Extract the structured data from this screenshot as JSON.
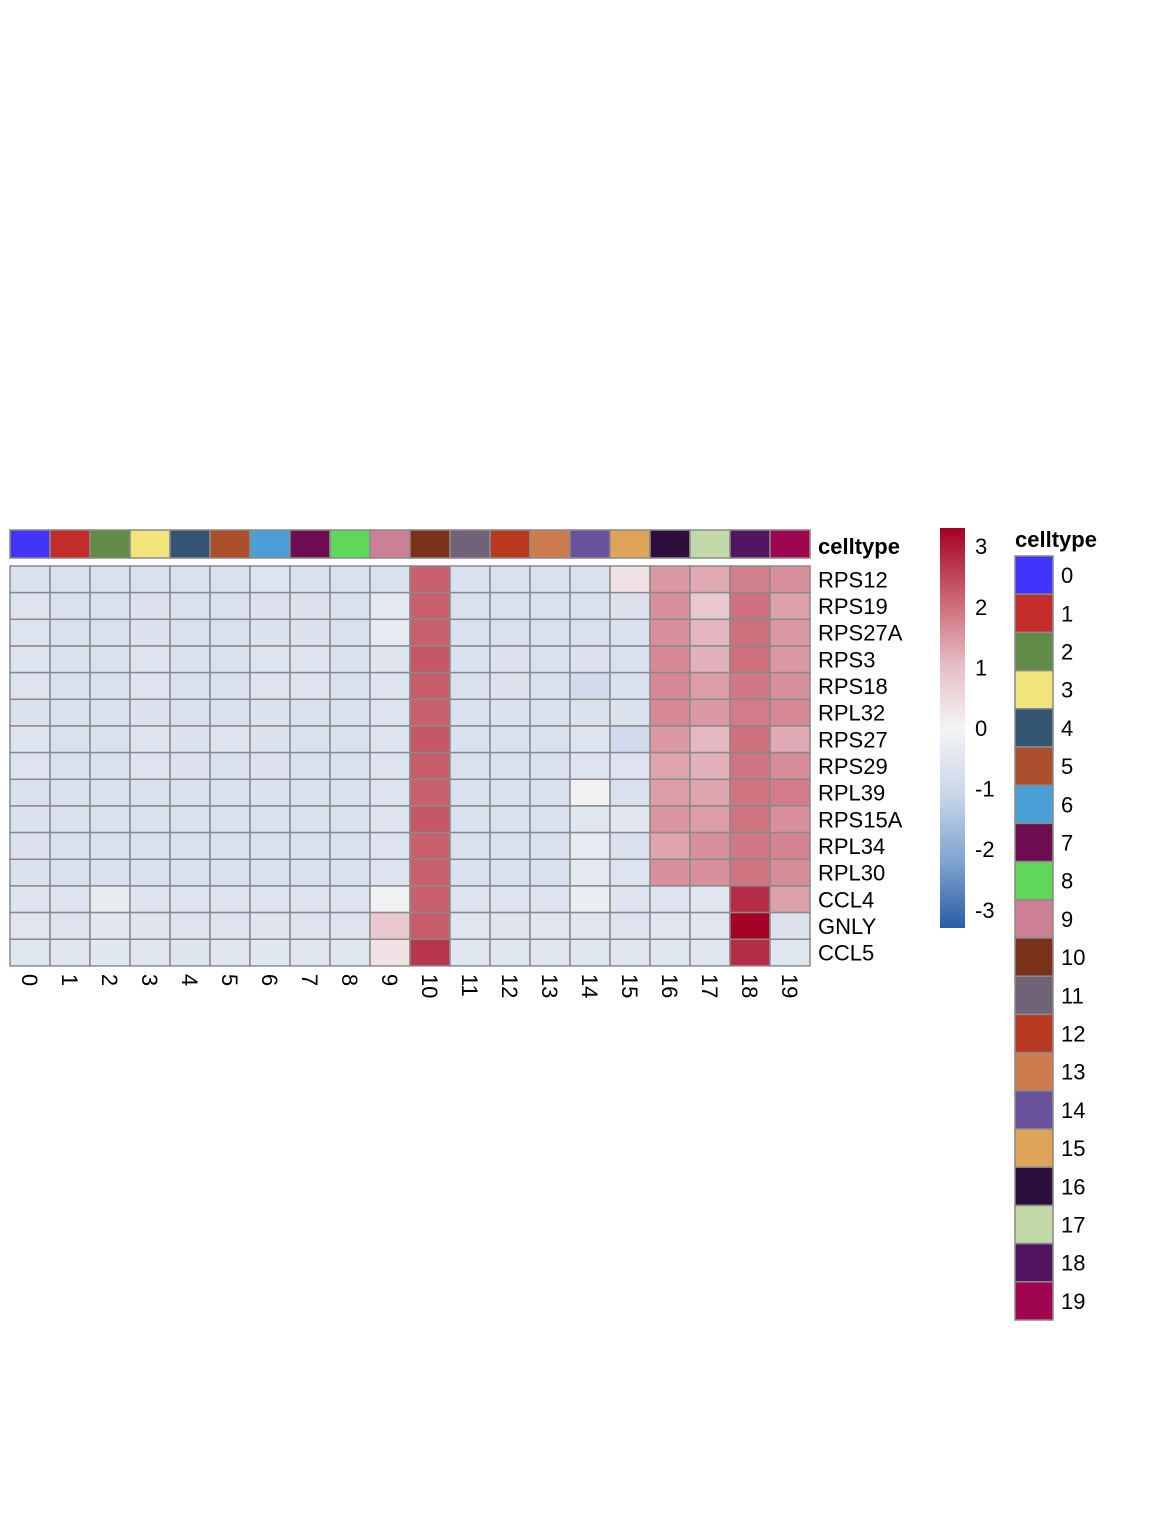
{
  "chart_data": {
    "type": "heatmap",
    "title": "",
    "xlabel": "",
    "ylabel": "",
    "x_categories": [
      "0",
      "1",
      "2",
      "3",
      "4",
      "5",
      "6",
      "7",
      "8",
      "9",
      "10",
      "11",
      "12",
      "13",
      "14",
      "15",
      "16",
      "17",
      "18",
      "19"
    ],
    "y_categories": [
      "RPS12",
      "RPS19",
      "RPS27A",
      "RPS3",
      "RPS18",
      "RPL32",
      "RPS27",
      "RPS29",
      "RPL39",
      "RPS15A",
      "RPL34",
      "RPL30",
      "CCL4",
      "GNLY",
      "CCL5"
    ],
    "values": [
      [
        -0.7,
        -0.7,
        -0.7,
        -0.7,
        -0.7,
        -0.7,
        -0.6,
        -0.7,
        -0.7,
        -0.7,
        2.2,
        -0.7,
        -0.7,
        -0.7,
        -0.7,
        0.35,
        1.5,
        1.3,
        1.8,
        1.6
      ],
      [
        -0.6,
        -0.7,
        -0.7,
        -0.65,
        -0.7,
        -0.7,
        -0.65,
        -0.65,
        -0.7,
        -0.4,
        2.2,
        -0.7,
        -0.7,
        -0.7,
        -0.7,
        -0.65,
        1.6,
        0.8,
        2.0,
        1.4
      ],
      [
        -0.6,
        -0.7,
        -0.7,
        -0.65,
        -0.7,
        -0.7,
        -0.65,
        -0.65,
        -0.7,
        -0.35,
        2.2,
        -0.7,
        -0.7,
        -0.7,
        -0.7,
        -0.7,
        1.6,
        1.15,
        2.0,
        1.5
      ],
      [
        -0.6,
        -0.7,
        -0.7,
        -0.6,
        -0.7,
        -0.7,
        -0.6,
        -0.6,
        -0.7,
        -0.55,
        2.3,
        -0.7,
        -0.65,
        -0.7,
        -0.65,
        -0.7,
        1.7,
        1.2,
        2.0,
        1.5
      ],
      [
        -0.6,
        -0.7,
        -0.7,
        -0.6,
        -0.7,
        -0.7,
        -0.6,
        -0.6,
        -0.7,
        -0.6,
        2.25,
        -0.7,
        -0.65,
        -0.7,
        -0.9,
        -0.7,
        1.7,
        1.45,
        1.9,
        1.6
      ],
      [
        -0.65,
        -0.7,
        -0.7,
        -0.65,
        -0.7,
        -0.7,
        -0.65,
        -0.7,
        -0.7,
        -0.6,
        2.2,
        -0.7,
        -0.65,
        -0.7,
        -0.65,
        -0.65,
        1.7,
        1.5,
        1.85,
        1.7
      ],
      [
        -0.6,
        -0.7,
        -0.7,
        -0.6,
        -0.65,
        -0.6,
        -0.65,
        -0.7,
        -0.7,
        -0.6,
        2.3,
        -0.7,
        -0.7,
        -0.7,
        -0.6,
        -0.9,
        1.5,
        1.1,
        2.0,
        1.3
      ],
      [
        -0.6,
        -0.7,
        -0.7,
        -0.6,
        -0.65,
        -0.7,
        -0.65,
        -0.7,
        -0.7,
        -0.6,
        2.25,
        -0.7,
        -0.7,
        -0.7,
        -0.6,
        -0.6,
        1.35,
        1.2,
        1.95,
        1.65
      ],
      [
        -0.7,
        -0.7,
        -0.7,
        -0.7,
        -0.7,
        -0.7,
        -0.65,
        -0.7,
        -0.7,
        -0.6,
        2.2,
        -0.7,
        -0.7,
        -0.7,
        0.05,
        -0.7,
        1.45,
        1.35,
        1.95,
        1.85
      ],
      [
        -0.65,
        -0.7,
        -0.7,
        -0.7,
        -0.7,
        -0.7,
        -0.7,
        -0.7,
        -0.7,
        -0.6,
        2.3,
        -0.7,
        -0.7,
        -0.7,
        -0.5,
        -0.45,
        1.55,
        1.45,
        1.95,
        1.6
      ],
      [
        -0.65,
        -0.7,
        -0.7,
        -0.7,
        -0.7,
        -0.7,
        -0.7,
        -0.7,
        -0.7,
        -0.6,
        2.2,
        -0.7,
        -0.7,
        -0.7,
        -0.35,
        -0.7,
        1.35,
        1.6,
        1.9,
        1.75
      ],
      [
        -0.65,
        -0.7,
        -0.7,
        -0.7,
        -0.7,
        -0.7,
        -0.7,
        -0.7,
        -0.7,
        -0.6,
        2.2,
        -0.7,
        -0.7,
        -0.7,
        -0.4,
        -0.6,
        1.6,
        1.6,
        1.95,
        1.65
      ],
      [
        -0.6,
        -0.6,
        -0.3,
        -0.6,
        -0.6,
        -0.6,
        -0.6,
        -0.6,
        -0.6,
        -0.1,
        2.2,
        -0.6,
        -0.6,
        -0.6,
        -0.2,
        -0.6,
        -0.6,
        -0.5,
        2.8,
        1.4
      ],
      [
        -0.5,
        -0.6,
        -0.45,
        -0.55,
        -0.6,
        -0.6,
        -0.55,
        -0.6,
        -0.6,
        0.8,
        2.25,
        -0.5,
        -0.55,
        -0.5,
        -0.5,
        -0.6,
        -0.5,
        -0.5,
        3.3,
        -0.65
      ],
      [
        -0.5,
        -0.5,
        -0.45,
        -0.5,
        -0.55,
        -0.5,
        -0.45,
        -0.5,
        -0.5,
        0.35,
        2.7,
        -0.5,
        -0.5,
        -0.5,
        -0.5,
        -0.5,
        -0.5,
        -0.5,
        2.8,
        -0.5
      ]
    ],
    "color_scale": {
      "min": -3.3,
      "max": 3.3,
      "colors": [
        "#2a5da6",
        "#7fa4cf",
        "#c9d6ea",
        "#f4f4f4",
        "#e5b9c2",
        "#c9606e",
        "#a50026"
      ],
      "ticks": [
        "3",
        "2",
        "1",
        "0",
        "-1",
        "-2",
        "-3"
      ]
    },
    "annotation": {
      "label": "celltype",
      "legend_title": "celltype",
      "legend_labels": [
        "0",
        "1",
        "2",
        "3",
        "4",
        "5",
        "6",
        "7",
        "8",
        "9",
        "10",
        "11",
        "12",
        "13",
        "14",
        "15",
        "16",
        "17",
        "18",
        "19"
      ],
      "colors": [
        "#3f35fb",
        "#c42c2a",
        "#618b46",
        "#efe57b",
        "#345571",
        "#ac4f2d",
        "#4aa0d6",
        "#6c0e50",
        "#5ed75a",
        "#cc7f95",
        "#7a331a",
        "#706277",
        "#b8391f",
        "#cd7d4d",
        "#6a519b",
        "#dea55a",
        "#2b0f3c",
        "#c3d9a7",
        "#521460",
        "#a0054f"
      ]
    },
    "legend_placement": "right",
    "grid": true
  }
}
